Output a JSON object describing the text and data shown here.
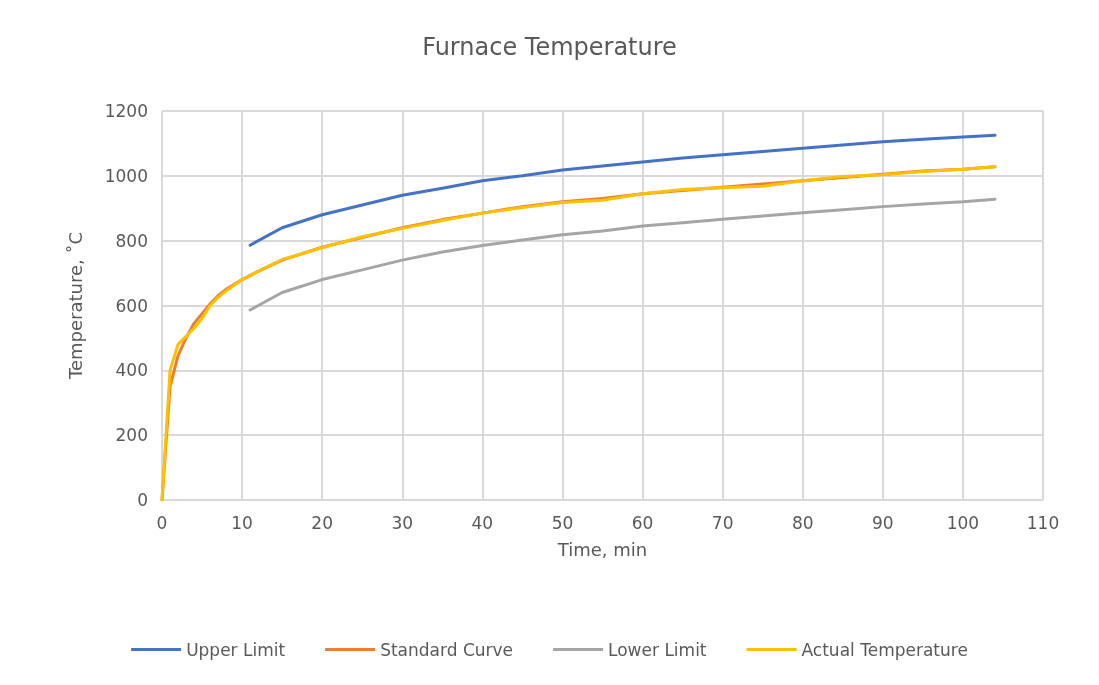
{
  "chart_data": {
    "type": "line",
    "title": "Furnace Temperature",
    "xlabel": "Time, min",
    "ylabel": "Temperature, ˚C",
    "xlim": [
      0,
      110
    ],
    "xticks": [
      0,
      10,
      20,
      30,
      40,
      50,
      60,
      70,
      80,
      90,
      100,
      110
    ],
    "ylim": [
      0,
      1200
    ],
    "yticks": [
      0,
      200,
      400,
      600,
      800,
      1000,
      1200
    ],
    "grid": true,
    "legend": "bottom",
    "marker": "none",
    "line_style": "solid",
    "series": [
      {
        "name": "Upper Limit",
        "color": "#4472c4",
        "x": [
          11,
          15,
          20,
          25,
          30,
          35,
          40,
          45,
          50,
          55,
          60,
          65,
          70,
          75,
          80,
          85,
          90,
          95,
          100,
          104
        ],
        "values": [
          786,
          840,
          880,
          910,
          940,
          962,
          985,
          1000,
          1018,
          1030,
          1043,
          1055,
          1065,
          1075,
          1085,
          1095,
          1105,
          1113,
          1120,
          1125
        ]
      },
      {
        "name": "Standard Curve",
        "color": "#ed7d31",
        "x": [
          0,
          1,
          2,
          3,
          4,
          5,
          6,
          7,
          8,
          10,
          12,
          15,
          20,
          25,
          30,
          35,
          40,
          45,
          50,
          55,
          60,
          65,
          70,
          75,
          80,
          85,
          90,
          95,
          100,
          104
        ],
        "values": [
          0,
          350,
          445,
          500,
          545,
          575,
          605,
          630,
          650,
          680,
          705,
          740,
          780,
          810,
          840,
          865,
          885,
          905,
          920,
          930,
          945,
          955,
          965,
          975,
          985,
          995,
          1005,
          1015,
          1020,
          1028
        ]
      },
      {
        "name": "Lower Limit",
        "color": "#a5a5a5",
        "x": [
          11,
          15,
          20,
          25,
          30,
          35,
          40,
          45,
          50,
          55,
          60,
          65,
          70,
          75,
          80,
          85,
          90,
          95,
          100,
          104
        ],
        "values": [
          586,
          640,
          680,
          710,
          740,
          765,
          785,
          802,
          818,
          830,
          845,
          855,
          866,
          876,
          886,
          895,
          905,
          913,
          920,
          928
        ]
      },
      {
        "name": "Actual Temperature",
        "color": "#ffc000",
        "x": [
          0,
          1,
          2,
          3,
          4,
          5,
          6,
          7,
          8,
          10,
          12,
          15,
          20,
          25,
          30,
          35,
          40,
          45,
          50,
          55,
          60,
          65,
          70,
          75,
          80,
          85,
          90,
          95,
          100,
          104
        ],
        "values": [
          0,
          400,
          480,
          505,
          530,
          560,
          600,
          625,
          645,
          680,
          705,
          742,
          778,
          812,
          838,
          862,
          885,
          902,
          918,
          925,
          945,
          958,
          963,
          968,
          985,
          998,
          1003,
          1013,
          1020,
          1028
        ]
      }
    ]
  }
}
